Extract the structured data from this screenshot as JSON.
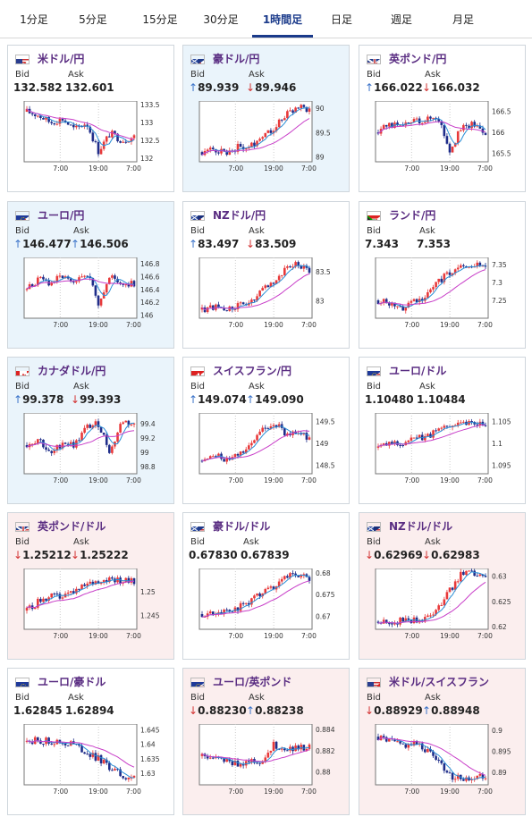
{
  "tabs": [
    {
      "label": "1分足"
    },
    {
      "label": "5分足"
    },
    {
      "label": "15分足"
    },
    {
      "label": "30分足"
    },
    {
      "label": "1時間足",
      "active": true
    },
    {
      "label": "日足"
    },
    {
      "label": "週足"
    },
    {
      "label": "月足"
    }
  ],
  "labels": {
    "bid": "Bid",
    "ask": "Ask"
  },
  "x_labels": [
    "7:00",
    "19:00",
    "7:00"
  ],
  "colors": {
    "up_candle": "#e8393a",
    "down_candle": "#1f2d8a",
    "ma_fast": "#2a8fd6",
    "ma_slow": "#c83ec8",
    "up_arrow": "#3b73c9",
    "down_arrow": "#d33333"
  },
  "cards": [
    {
      "pair": "米ドル/円",
      "flag": "us-jp",
      "bid": "132.582",
      "ask": "132.601",
      "bid_dir": "",
      "ask_dir": "",
      "bg": "white",
      "yticks": [
        "133.5",
        "133",
        "132.5",
        "132"
      ],
      "chart_data": {
        "type": "candlestick",
        "ylim": [
          131.9,
          133.6
        ],
        "trend": [
          133.3,
          133.2,
          133.0,
          133.1,
          132.8,
          133.0,
          132.2,
          132.7,
          132.5,
          132.6
        ]
      }
    },
    {
      "pair": "豪ドル/円",
      "flag": "au-jp",
      "bid": "89.939",
      "ask": "89.946",
      "bid_dir": "up",
      "ask_dir": "dn",
      "bg": "blue",
      "yticks": [
        "90",
        "89.5",
        "89"
      ],
      "chart_data": {
        "type": "candlestick",
        "ylim": [
          88.9,
          90.15
        ],
        "trend": [
          89.1,
          89.15,
          89.1,
          89.2,
          89.2,
          89.45,
          89.6,
          89.85,
          90.05,
          89.94
        ]
      }
    },
    {
      "pair": "英ポンド/円",
      "flag": "gb-jp",
      "bid": "166.022",
      "ask": "166.032",
      "bid_dir": "up",
      "ask_dir": "dn",
      "bg": "white",
      "yticks": [
        "166.5",
        "166",
        "165.5"
      ],
      "chart_data": {
        "type": "candlestick",
        "ylim": [
          165.3,
          166.75
        ],
        "trend": [
          166.0,
          166.2,
          166.1,
          166.3,
          166.3,
          166.4,
          165.6,
          166.1,
          166.2,
          166.02
        ]
      }
    },
    {
      "pair": "ユーロ/円",
      "flag": "eu-jp",
      "bid": "146.477",
      "ask": "146.506",
      "bid_dir": "up",
      "ask_dir": "up",
      "bg": "blue",
      "yticks": [
        "146.8",
        "146.6",
        "146.4",
        "146.2",
        "146"
      ],
      "chart_data": {
        "type": "candlestick",
        "ylim": [
          145.95,
          146.9
        ],
        "trend": [
          146.4,
          146.55,
          146.5,
          146.6,
          146.45,
          146.7,
          146.2,
          146.6,
          146.5,
          146.48
        ]
      }
    },
    {
      "pair": "NZドル/円",
      "flag": "nz-jp",
      "bid": "83.497",
      "ask": "83.509",
      "bid_dir": "up",
      "ask_dir": "dn",
      "bg": "white",
      "yticks": [
        "83.5",
        "83"
      ],
      "chart_data": {
        "type": "candlestick",
        "ylim": [
          82.7,
          83.75
        ],
        "trend": [
          82.85,
          82.9,
          82.85,
          82.9,
          82.95,
          83.15,
          83.35,
          83.55,
          83.65,
          83.5
        ]
      }
    },
    {
      "pair": "ランド/円",
      "flag": "za-jp",
      "bid": "7.343",
      "ask": "7.353",
      "bid_dir": "",
      "ask_dir": "",
      "bg": "white",
      "yticks": [
        "7.35",
        "7.3",
        "7.25"
      ],
      "chart_data": {
        "type": "candlestick",
        "ylim": [
          7.2,
          7.37
        ],
        "trend": [
          7.25,
          7.24,
          7.23,
          7.25,
          7.26,
          7.3,
          7.33,
          7.34,
          7.35,
          7.343
        ]
      }
    },
    {
      "pair": "カナダドル/円",
      "flag": "ca-jp",
      "bid": "99.378",
      "ask": "99.393",
      "bid_dir": "up",
      "ask_dir": "dn",
      "bg": "blue",
      "yticks": [
        "99.4",
        "99.2",
        "99",
        "98.8"
      ],
      "chart_data": {
        "type": "candlestick",
        "ylim": [
          98.7,
          99.55
        ],
        "trend": [
          99.1,
          99.2,
          98.95,
          99.15,
          99.1,
          99.35,
          99.4,
          99.0,
          99.45,
          99.38
        ]
      }
    },
    {
      "pair": "スイスフラン/円",
      "flag": "ch-jp",
      "bid": "149.074",
      "ask": "149.090",
      "bid_dir": "up",
      "ask_dir": "up",
      "bg": "white",
      "yticks": [
        "149.5",
        "149",
        "148.5"
      ],
      "chart_data": {
        "type": "candlestick",
        "ylim": [
          148.3,
          149.7
        ],
        "trend": [
          148.6,
          148.7,
          148.65,
          148.8,
          148.9,
          149.3,
          149.5,
          149.2,
          149.3,
          149.07
        ]
      }
    },
    {
      "pair": "ユーロ/ドル",
      "flag": "eu-us",
      "bid": "1.10480",
      "ask": "1.10484",
      "bid_dir": "",
      "ask_dir": "",
      "bg": "white",
      "yticks": [
        "1.105",
        "1.1",
        "1.095"
      ],
      "chart_data": {
        "type": "candlestick",
        "ylim": [
          1.093,
          1.107
        ],
        "trend": [
          1.099,
          1.1,
          1.1,
          1.101,
          1.1015,
          1.103,
          1.1045,
          1.105,
          1.1048,
          1.1048
        ]
      }
    },
    {
      "pair": "英ポンド/ドル",
      "flag": "gb-us",
      "bid": "1.25212",
      "ask": "1.25222",
      "bid_dir": "dn",
      "ask_dir": "dn",
      "bg": "pink",
      "yticks": [
        "1.25",
        "1.245"
      ],
      "chart_data": {
        "type": "candlestick",
        "ylim": [
          1.242,
          1.255
        ],
        "trend": [
          1.246,
          1.248,
          1.249,
          1.249,
          1.25,
          1.2515,
          1.2525,
          1.253,
          1.2525,
          1.2521
        ]
      }
    },
    {
      "pair": "豪ドル/ドル",
      "flag": "au-us",
      "bid": "0.67830",
      "ask": "0.67839",
      "bid_dir": "",
      "ask_dir": "",
      "bg": "white",
      "yticks": [
        "0.68",
        "0.675",
        "0.67"
      ],
      "chart_data": {
        "type": "candlestick",
        "ylim": [
          0.667,
          0.681
        ],
        "trend": [
          0.6705,
          0.671,
          0.6712,
          0.672,
          0.6735,
          0.675,
          0.677,
          0.679,
          0.6795,
          0.6783
        ]
      }
    },
    {
      "pair": "NZドル/ドル",
      "flag": "nz-us",
      "bid": "0.62969",
      "ask": "0.62983",
      "bid_dir": "dn",
      "ask_dir": "dn",
      "bg": "pink",
      "yticks": [
        "0.63",
        "0.625",
        "0.62"
      ],
      "chart_data": {
        "type": "candlestick",
        "ylim": [
          0.6195,
          0.6315
        ],
        "trend": [
          0.621,
          0.621,
          0.6212,
          0.6215,
          0.6215,
          0.624,
          0.627,
          0.6305,
          0.6305,
          0.6297
        ]
      }
    },
    {
      "pair": "ユーロ/豪ドル",
      "flag": "eu-au",
      "bid": "1.62845",
      "ask": "1.62894",
      "bid_dir": "",
      "ask_dir": "",
      "bg": "white",
      "yticks": [
        "1.645",
        "1.64",
        "1.635",
        "1.63"
      ],
      "chart_data": {
        "type": "candlestick",
        "ylim": [
          1.626,
          1.647
        ],
        "trend": [
          1.641,
          1.6415,
          1.641,
          1.6405,
          1.64,
          1.637,
          1.635,
          1.632,
          1.629,
          1.6285
        ]
      }
    },
    {
      "pair": "ユーロ/英ポンド",
      "flag": "eu-gb",
      "bid": "0.88230",
      "ask": "0.88238",
      "bid_dir": "dn",
      "ask_dir": "up",
      "bg": "pink",
      "yticks": [
        "0.884",
        "0.882",
        "0.88"
      ],
      "chart_data": {
        "type": "candlestick",
        "ylim": [
          0.8788,
          0.8845
        ],
        "trend": [
          0.8815,
          0.8812,
          0.881,
          0.8808,
          0.8811,
          0.881,
          0.8825,
          0.8822,
          0.8823,
          0.8823
        ]
      }
    },
    {
      "pair": "米ドル/スイスフラン",
      "flag": "us-ch",
      "bid": "0.88929",
      "ask": "0.88948",
      "bid_dir": "dn",
      "ask_dir": "up",
      "bg": "pink",
      "yticks": [
        "0.9",
        "0.895",
        "0.89"
      ],
      "chart_data": {
        "type": "candlestick",
        "ylim": [
          0.887,
          0.9015
        ],
        "trend": [
          0.8985,
          0.8975,
          0.8965,
          0.897,
          0.8955,
          0.8935,
          0.889,
          0.8885,
          0.8888,
          0.8893
        ]
      }
    }
  ]
}
